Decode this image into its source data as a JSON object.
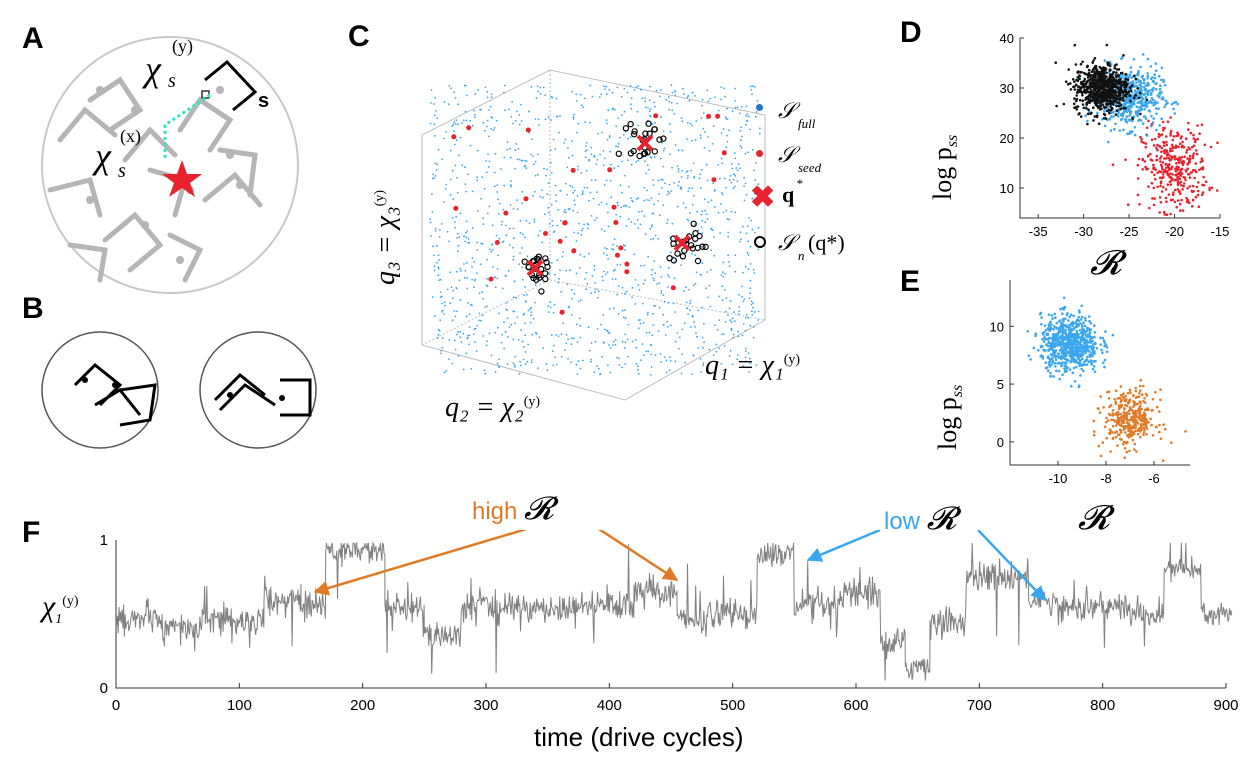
{
  "panels": {
    "A": "A",
    "B": "B",
    "C": "C",
    "D": "D",
    "E": "E",
    "F": "F"
  },
  "panelA": {
    "chi_y": "χ",
    "chi_x": "χ",
    "sub_s": "s",
    "sup_y": "(y)",
    "sup_x": "(x)",
    "s_label": "s"
  },
  "panelC": {
    "legend": [
      {
        "name": "S_full",
        "symbol": "𝒮",
        "sub": "full",
        "color": "#1f77c8"
      },
      {
        "name": "S_seed",
        "symbol": "𝒮",
        "sub": "seed",
        "color": "#e8232e"
      },
      {
        "name": "q*",
        "symbol": "q",
        "sup": "*",
        "color": "#e8232e"
      },
      {
        "name": "S_n(q*)",
        "symbol": "𝒮",
        "sub": "n",
        "tail": "(q*)",
        "color": "#000000"
      }
    ],
    "axis_q3": "q₃ = χ₃",
    "axis_q3_sup": "(y)",
    "axis_q2": "q₂ = χ₂",
    "axis_q2_sup": "(y)",
    "axis_q1": "q₁ = χ₁",
    "axis_q1_sup": "(y)"
  },
  "colors": {
    "blue": "#3aa6ee",
    "red": "#e8232e",
    "orange": "#e07a26",
    "gray": "#808080",
    "teal": "#2ee6c6"
  },
  "chart_data": [
    {
      "id": "D",
      "type": "scatter",
      "xlabel": "𝓡",
      "ylabel": "log p",
      "ylabel_sub": "ss",
      "xlim": [
        -37,
        -15
      ],
      "ylim": [
        4,
        40
      ],
      "xticks": [
        "-35",
        "-30",
        "-25",
        "-20",
        "-15"
      ],
      "xtick_values": [
        -35,
        -30,
        -25,
        -20,
        -15
      ],
      "yticks": [
        "10",
        "20",
        "30",
        "40"
      ],
      "ytick_values": [
        10,
        20,
        30,
        40
      ],
      "series": [
        {
          "name": "red",
          "color": "#e8232e",
          "center": [
            -20,
            14
          ],
          "spread": [
            3,
            7
          ],
          "n": 350
        },
        {
          "name": "blue",
          "color": "#3aa6ee",
          "center": [
            -25,
            28
          ],
          "spread": [
            3,
            5
          ],
          "n": 500
        },
        {
          "name": "black",
          "color": "#111111",
          "center": [
            -28,
            30
          ],
          "spread": [
            2.5,
            4
          ],
          "n": 700
        }
      ]
    },
    {
      "id": "E",
      "type": "scatter",
      "xlabel": "𝓡",
      "ylabel": "log p",
      "ylabel_sub": "ss",
      "xlim": [
        -12,
        -4.5
      ],
      "ylim": [
        -2,
        14
      ],
      "xticks": [
        "-10",
        "-8",
        "-6"
      ],
      "xtick_values": [
        -10,
        -8,
        -6
      ],
      "yticks": [
        "0",
        "5",
        "10"
      ],
      "ytick_values": [
        0,
        5,
        10
      ],
      "series": [
        {
          "name": "blue",
          "color": "#3aa6ee",
          "center": [
            -9.5,
            8.5
          ],
          "spread": [
            1.0,
            2.0
          ],
          "n": 700
        },
        {
          "name": "orange",
          "color": "#e07a26",
          "center": [
            -7,
            2
          ],
          "spread": [
            0.9,
            2.0
          ],
          "n": 350
        }
      ]
    },
    {
      "id": "F",
      "type": "line",
      "xlabel": "time (drive cycles)",
      "ylabel": "χ",
      "ylabel_sub": "1",
      "ylabel_sup": "(y)",
      "xlim": [
        0,
        900
      ],
      "ylim": [
        0,
        1
      ],
      "xticks": [
        "0",
        "100",
        "200",
        "300",
        "400",
        "500",
        "600",
        "700",
        "800",
        "900"
      ],
      "xtick_values": [
        0,
        100,
        200,
        300,
        400,
        500,
        600,
        700,
        800,
        900
      ],
      "yticks": [
        "0",
        "1"
      ],
      "ytick_values": [
        0,
        1
      ],
      "segments": [
        [
          0,
          5,
          0.45
        ],
        [
          5,
          35,
          0.47
        ],
        [
          35,
          70,
          0.4
        ],
        [
          70,
          120,
          0.45
        ],
        [
          120,
          150,
          0.6
        ],
        [
          150,
          170,
          0.55
        ],
        [
          170,
          218,
          0.93
        ],
        [
          218,
          250,
          0.55
        ],
        [
          250,
          280,
          0.35
        ],
        [
          280,
          420,
          0.55
        ],
        [
          420,
          455,
          0.65
        ],
        [
          455,
          480,
          0.45
        ],
        [
          480,
          520,
          0.5
        ],
        [
          520,
          550,
          0.9
        ],
        [
          550,
          590,
          0.55
        ],
        [
          590,
          620,
          0.65
        ],
        [
          620,
          640,
          0.3
        ],
        [
          640,
          660,
          0.15
        ],
        [
          660,
          690,
          0.45
        ],
        [
          690,
          740,
          0.75
        ],
        [
          740,
          760,
          0.6
        ],
        [
          760,
          820,
          0.55
        ],
        [
          820,
          850,
          0.5
        ],
        [
          850,
          880,
          0.8
        ],
        [
          880,
          905,
          0.5
        ]
      ],
      "annotations": [
        {
          "text": "high",
          "symbol": "𝓡",
          "color": "#e07a26"
        },
        {
          "text": "low",
          "symbol": "𝓡",
          "color": "#3aa6ee"
        }
      ]
    }
  ]
}
